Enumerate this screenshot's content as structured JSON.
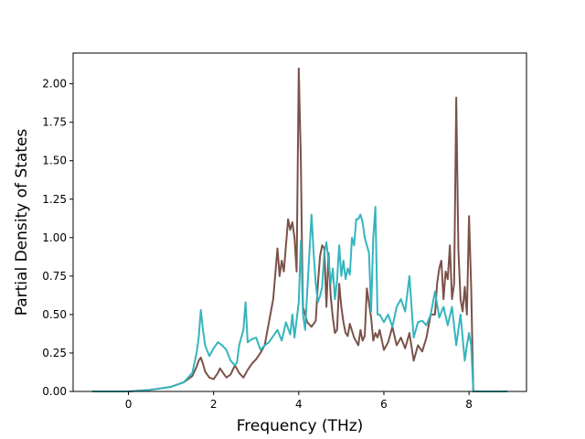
{
  "chart_data": {
    "type": "line",
    "title": "",
    "xlabel": "Frequency (THz)",
    "ylabel": "Partial Density of States",
    "xlim": [
      -1.3,
      9.35
    ],
    "ylim": [
      0.0,
      2.2
    ],
    "grid": false,
    "legend": "none",
    "xticks": [
      {
        "value": 0,
        "label": "0"
      },
      {
        "value": 2,
        "label": "2"
      },
      {
        "value": 4,
        "label": "4"
      },
      {
        "value": 6,
        "label": "6"
      },
      {
        "value": 8,
        "label": "8"
      }
    ],
    "yticks": [
      {
        "value": 0.0,
        "label": "0.00"
      },
      {
        "value": 0.25,
        "label": "0.25"
      },
      {
        "value": 0.5,
        "label": "0.50"
      },
      {
        "value": 0.75,
        "label": "0.75"
      },
      {
        "value": 1.0,
        "label": "1.00"
      },
      {
        "value": 1.25,
        "label": "1.25"
      },
      {
        "value": 1.5,
        "label": "1.50"
      },
      {
        "value": 1.75,
        "label": "1.75"
      },
      {
        "value": 2.0,
        "label": "2.00"
      }
    ],
    "series": [
      {
        "color": "#7a5249",
        "x": [
          -0.85,
          0.0,
          0.5,
          1.0,
          1.3,
          1.5,
          1.6,
          1.65,
          1.7,
          1.75,
          1.8,
          1.9,
          2.0,
          2.1,
          2.15,
          2.2,
          2.3,
          2.4,
          2.5,
          2.6,
          2.7,
          2.8,
          2.9,
          3.0,
          3.1,
          3.2,
          3.3,
          3.4,
          3.5,
          3.55,
          3.6,
          3.65,
          3.7,
          3.75,
          3.8,
          3.85,
          3.9,
          3.95,
          4.0,
          4.05,
          4.08,
          4.1,
          4.15,
          4.2,
          4.3,
          4.4,
          4.45,
          4.5,
          4.55,
          4.6,
          4.65,
          4.7,
          4.75,
          4.8,
          4.85,
          4.9,
          4.95,
          5.0,
          5.05,
          5.1,
          5.15,
          5.2,
          5.3,
          5.4,
          5.45,
          5.5,
          5.55,
          5.6,
          5.7,
          5.75,
          5.8,
          5.85,
          5.9,
          6.0,
          6.1,
          6.2,
          6.3,
          6.4,
          6.5,
          6.6,
          6.7,
          6.8,
          6.9,
          7.0,
          7.1,
          7.2,
          7.25,
          7.3,
          7.35,
          7.4,
          7.45,
          7.5,
          7.55,
          7.6,
          7.65,
          7.7,
          7.72,
          7.75,
          7.8,
          7.85,
          7.9,
          7.95,
          8.0,
          8.05,
          8.1,
          8.9
        ],
        "values": [
          0.0,
          0.0,
          0.01,
          0.03,
          0.06,
          0.1,
          0.16,
          0.2,
          0.22,
          0.18,
          0.13,
          0.09,
          0.08,
          0.12,
          0.15,
          0.13,
          0.09,
          0.11,
          0.17,
          0.12,
          0.09,
          0.14,
          0.18,
          0.21,
          0.25,
          0.3,
          0.45,
          0.6,
          0.93,
          0.75,
          0.85,
          0.78,
          0.95,
          1.12,
          1.05,
          1.1,
          1.0,
          0.78,
          2.1,
          1.5,
          0.85,
          0.55,
          0.5,
          0.45,
          0.42,
          0.46,
          0.7,
          0.88,
          0.95,
          0.93,
          0.55,
          0.9,
          0.62,
          0.48,
          0.38,
          0.4,
          0.7,
          0.55,
          0.45,
          0.38,
          0.36,
          0.44,
          0.35,
          0.3,
          0.4,
          0.33,
          0.36,
          0.67,
          0.48,
          0.33,
          0.38,
          0.35,
          0.4,
          0.27,
          0.32,
          0.42,
          0.3,
          0.35,
          0.28,
          0.38,
          0.2,
          0.3,
          0.26,
          0.35,
          0.5,
          0.5,
          0.7,
          0.8,
          0.85,
          0.6,
          0.78,
          0.73,
          0.95,
          0.6,
          0.7,
          1.91,
          1.5,
          0.92,
          0.6,
          0.52,
          0.68,
          0.5,
          1.14,
          0.68,
          0.0,
          0.0
        ]
      },
      {
        "color": "#35b5be",
        "x": [
          -0.85,
          0.0,
          0.5,
          1.0,
          1.3,
          1.5,
          1.6,
          1.65,
          1.7,
          1.75,
          1.8,
          1.9,
          2.0,
          2.1,
          2.2,
          2.3,
          2.4,
          2.5,
          2.55,
          2.6,
          2.7,
          2.75,
          2.8,
          2.9,
          3.0,
          3.1,
          3.2,
          3.3,
          3.4,
          3.5,
          3.6,
          3.7,
          3.8,
          3.85,
          3.9,
          4.0,
          4.05,
          4.1,
          4.15,
          4.2,
          4.3,
          4.35,
          4.4,
          4.45,
          4.5,
          4.55,
          4.6,
          4.65,
          4.7,
          4.75,
          4.8,
          4.85,
          4.9,
          4.95,
          5.0,
          5.05,
          5.1,
          5.15,
          5.2,
          5.25,
          5.3,
          5.35,
          5.4,
          5.45,
          5.5,
          5.55,
          5.6,
          5.65,
          5.7,
          5.75,
          5.8,
          5.85,
          5.9,
          6.0,
          6.1,
          6.2,
          6.3,
          6.4,
          6.5,
          6.6,
          6.7,
          6.8,
          6.9,
          7.0,
          7.1,
          7.2,
          7.3,
          7.4,
          7.5,
          7.6,
          7.7,
          7.8,
          7.9,
          7.95,
          8.0,
          8.05,
          8.1,
          8.9
        ],
        "values": [
          0.0,
          0.0,
          0.01,
          0.03,
          0.06,
          0.12,
          0.25,
          0.35,
          0.53,
          0.4,
          0.3,
          0.23,
          0.28,
          0.32,
          0.3,
          0.27,
          0.2,
          0.17,
          0.19,
          0.3,
          0.4,
          0.58,
          0.32,
          0.34,
          0.35,
          0.27,
          0.3,
          0.32,
          0.36,
          0.4,
          0.33,
          0.45,
          0.37,
          0.5,
          0.35,
          0.58,
          0.98,
          0.5,
          0.4,
          0.65,
          1.15,
          0.9,
          0.7,
          0.58,
          0.62,
          0.68,
          0.9,
          0.97,
          0.85,
          0.7,
          0.8,
          0.6,
          0.72,
          0.95,
          0.75,
          0.85,
          0.73,
          0.8,
          0.76,
          1.0,
          0.95,
          1.12,
          1.12,
          1.15,
          1.1,
          1.0,
          0.95,
          0.9,
          0.52,
          1.0,
          1.2,
          0.5,
          0.5,
          0.45,
          0.5,
          0.42,
          0.55,
          0.6,
          0.52,
          0.75,
          0.35,
          0.45,
          0.46,
          0.43,
          0.5,
          0.65,
          0.48,
          0.55,
          0.43,
          0.55,
          0.3,
          0.5,
          0.2,
          0.3,
          0.38,
          0.3,
          0.0,
          0.0
        ]
      }
    ]
  }
}
